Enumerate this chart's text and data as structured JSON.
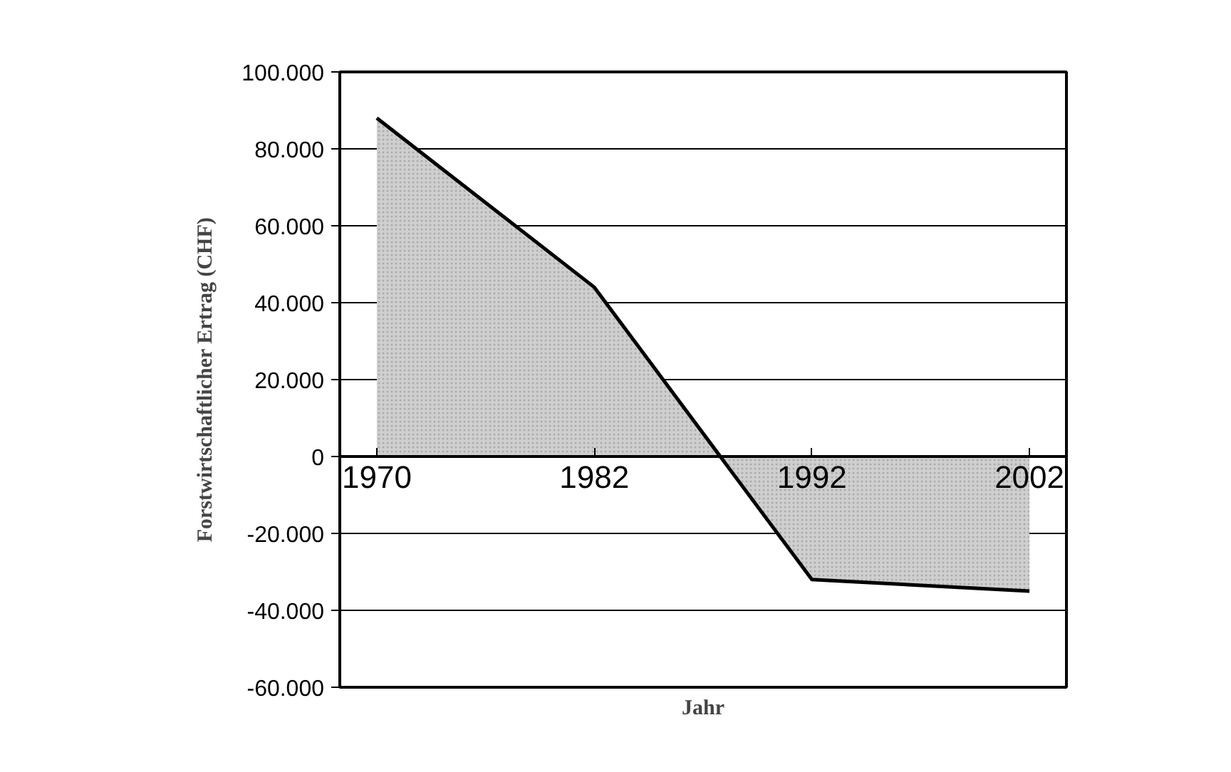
{
  "chart_data": {
    "type": "area",
    "xlabel": "Jahr",
    "ylabel": "Forstwirtschaftlicher Ertrag (CHF)",
    "categories": [
      "1970",
      "1982",
      "1992",
      "2002"
    ],
    "series": [
      {
        "color": "#cfcfcf",
        "values": [
          88000,
          44000,
          -32000,
          -35000
        ]
      }
    ],
    "ylim": [
      -60000,
      100000
    ],
    "yticks": [
      {
        "value": -60000,
        "label": "-60.000"
      },
      {
        "value": -40000,
        "label": "-40.000"
      },
      {
        "value": -20000,
        "label": "-20.000"
      },
      0,
      {
        "value": 20000,
        "label": "20.000"
      },
      {
        "value": 40000,
        "label": "40.000"
      },
      {
        "value": 60000,
        "label": "60.000"
      },
      {
        "value": 80000,
        "label": "80.000"
      },
      {
        "value": 100000,
        "label": "100.000"
      }
    ],
    "grid": "y"
  }
}
